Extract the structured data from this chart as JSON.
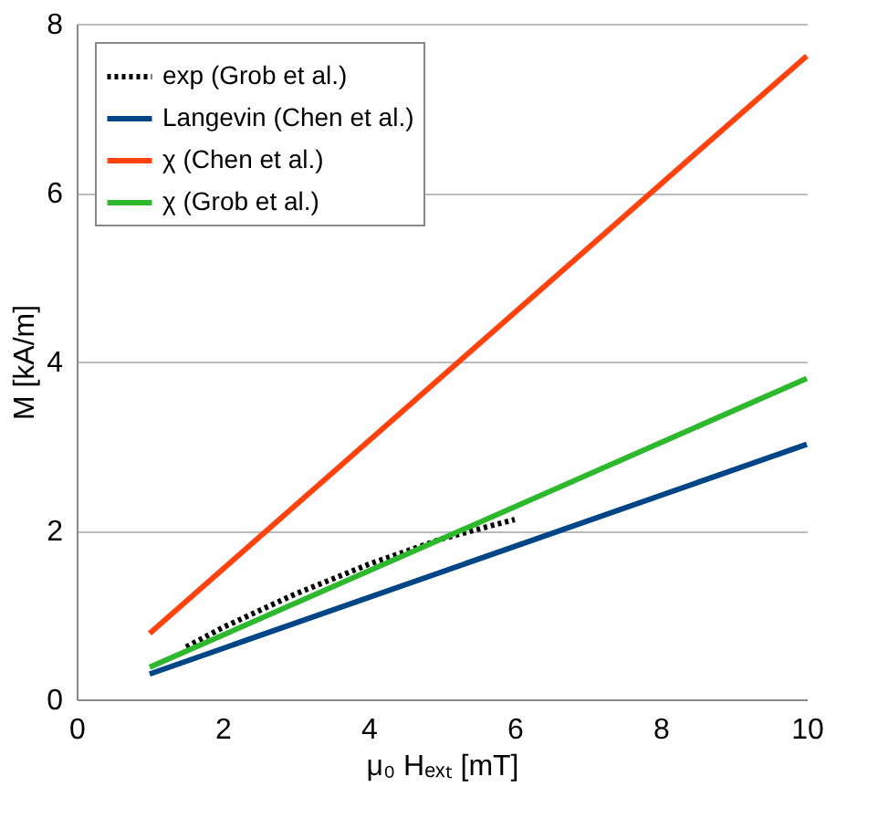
{
  "chart_data": {
    "type": "line",
    "xlabel": "μ₀ Hₑₓₜ [mT]",
    "ylabel": "M [kA/m]",
    "xlim": [
      0,
      10
    ],
    "ylim": [
      0,
      8
    ],
    "xticks": [
      0,
      2,
      4,
      6,
      8,
      10
    ],
    "yticks": [
      0,
      2,
      4,
      6,
      8
    ],
    "grid": "y",
    "legend": "top left",
    "marker": "none",
    "series": [
      {
        "name": "exp (Grob et al.)",
        "color": "#000000",
        "line_style": "dotted",
        "x": [
          1.5,
          2,
          3,
          4,
          5,
          6
        ],
        "values": [
          0.62,
          0.85,
          1.25,
          1.6,
          1.9,
          2.13
        ]
      },
      {
        "name": "Langevin (Chen et al.)",
        "color": "#004586",
        "line_style": "solid",
        "x": [
          1,
          10
        ],
        "values": [
          0.3,
          3.02
        ]
      },
      {
        "name": "χ (Chen et al.)",
        "color": "#ff420e",
        "line_style": "solid",
        "x": [
          1,
          10
        ],
        "values": [
          0.78,
          7.62
        ]
      },
      {
        "name": "χ (Grob et al.)",
        "color": "#2eb82e",
        "line_style": "solid",
        "x": [
          1,
          10
        ],
        "values": [
          0.38,
          3.8
        ]
      }
    ]
  }
}
